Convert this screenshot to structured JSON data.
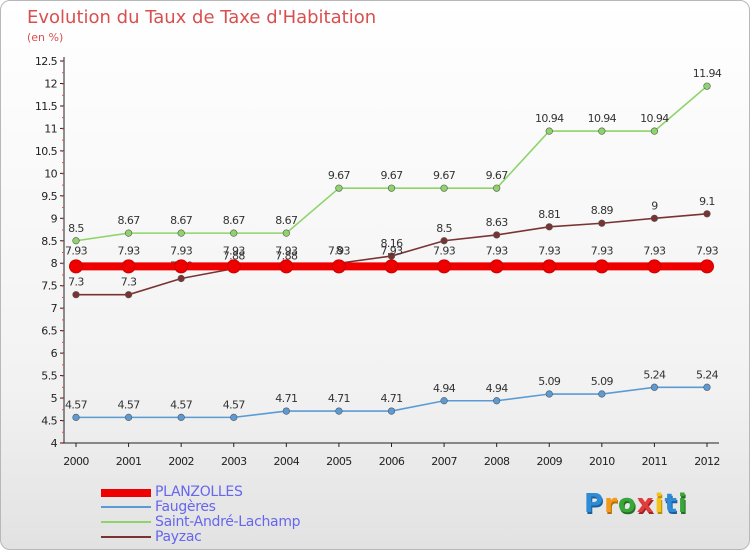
{
  "title": "Evolution du Taux de Taxe d'Habitation",
  "subtitle": "(en %)",
  "logo_text": "Proxiti",
  "chart_data": {
    "type": "line",
    "x": [
      "2000",
      "2001",
      "2002",
      "2003",
      "2004",
      "2005",
      "2006",
      "2007",
      "2008",
      "2009",
      "2010",
      "2011",
      "2012"
    ],
    "ylim": [
      4,
      12.5
    ],
    "yticks": [
      "4",
      "4.5",
      "5",
      "5.5",
      "6",
      "6.5",
      "7",
      "7.5",
      "8",
      "8.5",
      "9",
      "9.5",
      "10",
      "10.5",
      "11",
      "11.5",
      "12",
      "12.5"
    ],
    "grid": false,
    "legend_position": "bottom-left",
    "series": [
      {
        "name": "PLANZOLLES",
        "color": "#ee0000",
        "values": [
          7.93,
          7.93,
          7.93,
          7.93,
          7.93,
          7.93,
          7.93,
          7.93,
          7.93,
          7.93,
          7.93,
          7.93,
          7.93
        ],
        "labels": [
          "7.93",
          "7.93",
          "7.93",
          "7.93",
          "7.93",
          "7.93",
          "7.93",
          "7.93",
          "7.93",
          "7.93",
          "7.93",
          "7.93",
          "7.93"
        ]
      },
      {
        "name": "Faugères",
        "color": "#5b9bd5",
        "values": [
          4.57,
          4.57,
          4.57,
          4.57,
          4.71,
          4.71,
          4.71,
          4.94,
          4.94,
          5.09,
          5.09,
          5.24,
          5.24
        ],
        "labels": [
          "4.57",
          "4.57",
          "4.57",
          "4.57",
          "4.71",
          "4.71",
          "4.71",
          "4.94",
          "4.94",
          "5.09",
          "5.09",
          "5.24",
          "5.24"
        ]
      },
      {
        "name": "Saint-André-Lachamp",
        "color": "#8fd46b",
        "values": [
          8.5,
          8.67,
          8.67,
          8.67,
          8.67,
          9.67,
          9.67,
          9.67,
          9.67,
          10.94,
          10.94,
          10.94,
          11.94
        ],
        "labels": [
          "8.5",
          "8.67",
          "8.67",
          "8.67",
          "8.67",
          "9.67",
          "9.67",
          "9.67",
          "9.67",
          "10.94",
          "10.94",
          "10.94",
          "11.94"
        ]
      },
      {
        "name": "Payzac",
        "color": "#7a3333",
        "values": [
          7.3,
          7.3,
          7.66,
          7.88,
          7.88,
          8,
          8.16,
          8.5,
          8.63,
          8.81,
          8.89,
          9,
          9.1
        ],
        "labels": [
          "7.3",
          "7.3",
          "7.66",
          "7.88",
          "7.88",
          "8",
          "8.16",
          "8.5",
          "8.63",
          "8.81",
          "8.89",
          "9",
          "9.1"
        ]
      }
    ]
  }
}
